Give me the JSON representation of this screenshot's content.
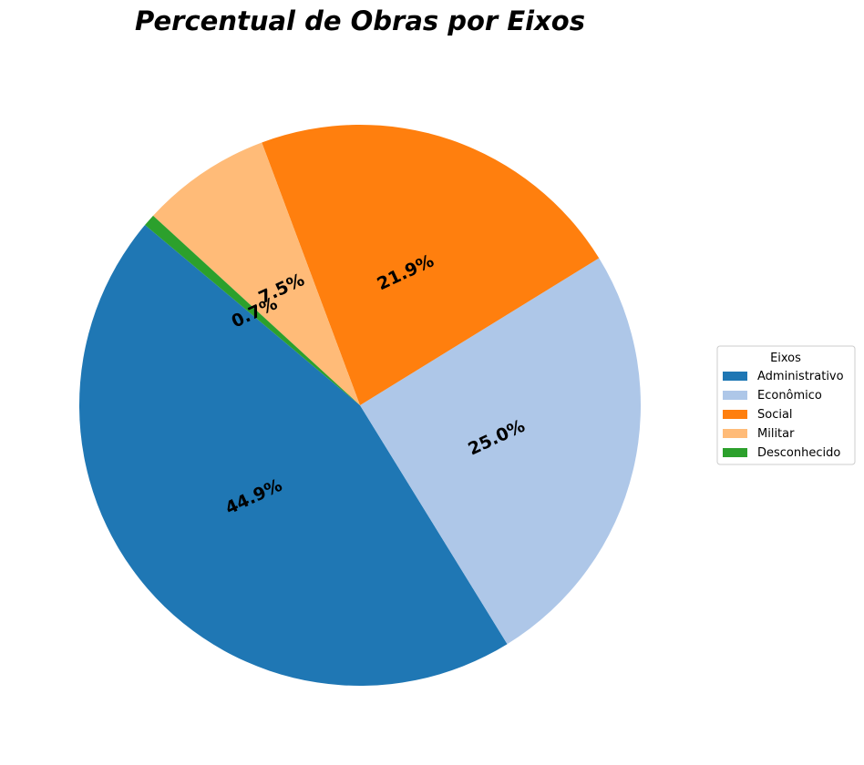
{
  "chart_data": {
    "type": "pie",
    "title": "Percentual de Obras por Eixos",
    "legend_title": "Eixos",
    "legend_position": "right",
    "slices": [
      {
        "label": "Administrativo",
        "value": 44.9,
        "display": "44.9%",
        "color": "#1f77b4"
      },
      {
        "label": "Econômico",
        "value": 25.0,
        "display": "25.0%",
        "color": "#aec7e8"
      },
      {
        "label": "Social",
        "value": 21.9,
        "display": "21.9%",
        "color": "#ff7f0e"
      },
      {
        "label": "Militar",
        "value": 7.5,
        "display": "7.5%",
        "color": "#ffbb78"
      },
      {
        "label": "Desconhecido",
        "value": 0.7,
        "display": "0.7%",
        "color": "#2ca02c"
      }
    ]
  }
}
